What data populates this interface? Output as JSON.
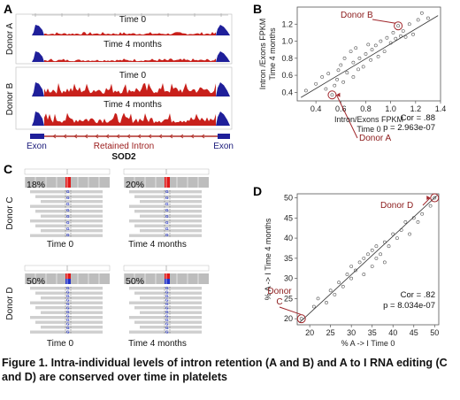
{
  "figure": {
    "panel_labels": [
      "A",
      "B",
      "C",
      "D"
    ],
    "caption": "Figure 1. Intra-individual levels of intron retention  (A and B) and A to I RNA editing (C and D) are conserved over time in platelets"
  },
  "panel_a": {
    "donor_labels": [
      "Donor A",
      "Donor B"
    ],
    "tracks": [
      {
        "title": "Time 0"
      },
      {
        "title": "Time 4 months"
      },
      {
        "title": "Time 0"
      },
      {
        "title": "Time 4 months"
      }
    ],
    "gene": {
      "exon_left": "Exon",
      "intron": "Retained Intron",
      "exon_right": "Exon",
      "name": "SOD2"
    },
    "colors": {
      "exon": "#1f1f9a",
      "intron": "#c8201b",
      "gene_line": "#b0302a"
    }
  },
  "panel_b": {
    "stats": {
      "cor": "Cor = .88",
      "p": "p = 2.963e-07"
    },
    "callouts": {
      "top": "Donor B",
      "bottom": "Donor A"
    }
  },
  "panel_c": {
    "donor_labels": [
      "Donor C",
      "Donor D"
    ],
    "tiles": [
      {
        "pct": "18%",
        "time": "Time 0"
      },
      {
        "pct": "20%",
        "time": "Time 4 months"
      },
      {
        "pct": "50%",
        "time": "Time 0"
      },
      {
        "pct": "50%",
        "time": "Time 4 months"
      }
    ]
  },
  "panel_d": {
    "stats": {
      "cor": "Cor = .82",
      "p": "p = 8.034e-07"
    },
    "callouts": {
      "top": "Donor D",
      "bottom_line1": "Donor",
      "bottom_line2": "C"
    }
  },
  "chart_data": [
    {
      "type": "scatter",
      "title": "",
      "xlabel": "Intron/Exons FPKM\nTime 0",
      "ylabel": "Intron /Exons FPKM\nTime 4 months",
      "xlim": [
        0.25,
        1.4
      ],
      "ylim": [
        0.3,
        1.4
      ],
      "x_ticks": [
        0.4,
        0.6,
        0.8,
        1.0,
        1.2,
        1.4
      ],
      "y_ticks": [
        0.4,
        0.6,
        0.8,
        1.0,
        1.2
      ],
      "x_tick_labels": [
        "0.4",
        "0.6",
        "0.8",
        "1.0",
        "1.2",
        "1.4"
      ],
      "y_tick_labels": [
        "0.4",
        "0.6",
        "0.8",
        "1.0",
        "1.2"
      ],
      "fit_line": [
        [
          0.28,
          0.34
        ],
        [
          1.38,
          1.3
        ]
      ],
      "points": [
        [
          0.32,
          0.42
        ],
        [
          0.4,
          0.5
        ],
        [
          0.45,
          0.58
        ],
        [
          0.48,
          0.44
        ],
        [
          0.5,
          0.62
        ],
        [
          0.53,
          0.37
        ],
        [
          0.55,
          0.48
        ],
        [
          0.57,
          0.55
        ],
        [
          0.58,
          0.66
        ],
        [
          0.6,
          0.72
        ],
        [
          0.62,
          0.52
        ],
        [
          0.63,
          0.8
        ],
        [
          0.65,
          0.63
        ],
        [
          0.68,
          0.88
        ],
        [
          0.7,
          0.58
        ],
        [
          0.7,
          0.75
        ],
        [
          0.72,
          0.92
        ],
        [
          0.74,
          0.67
        ],
        [
          0.75,
          0.8
        ],
        [
          0.78,
          0.7
        ],
        [
          0.8,
          0.85
        ],
        [
          0.82,
          0.96
        ],
        [
          0.84,
          0.78
        ],
        [
          0.85,
          0.9
        ],
        [
          0.88,
          0.95
        ],
        [
          0.9,
          0.82
        ],
        [
          0.92,
          1.0
        ],
        [
          0.95,
          0.88
        ],
        [
          0.97,
          1.04
        ],
        [
          1.0,
          0.98
        ],
        [
          1.02,
          1.1
        ],
        [
          1.04,
          1.03
        ],
        [
          1.06,
          1.18
        ],
        [
          1.08,
          1.06
        ],
        [
          1.1,
          1.12
        ],
        [
          1.12,
          1.05
        ],
        [
          1.15,
          1.2
        ],
        [
          1.18,
          1.08
        ],
        [
          1.22,
          1.25
        ],
        [
          1.25,
          1.33
        ],
        [
          1.3,
          1.27
        ]
      ],
      "highlighted": [
        {
          "label": "Donor B",
          "x": 1.06,
          "y": 1.18
        },
        {
          "label": "Donor A",
          "x": 0.53,
          "y": 0.37
        }
      ],
      "grid": false
    },
    {
      "type": "scatter",
      "title": "",
      "xlabel": "% A -> I Time 0",
      "ylabel": "% A -> I Time 4 months",
      "xlim": [
        17,
        51
      ],
      "ylim": [
        18.5,
        51
      ],
      "x_ticks": [
        20,
        25,
        30,
        35,
        40,
        45,
        50
      ],
      "y_ticks": [
        20,
        25,
        30,
        35,
        40,
        45,
        50
      ],
      "x_tick_labels": [
        "20",
        "25",
        "30",
        "35",
        "40",
        "45",
        "50"
      ],
      "y_tick_labels": [
        "20",
        "25",
        "30",
        "35",
        "40",
        "45",
        "50"
      ],
      "fit_line": [
        [
          17.5,
          19.0
        ],
        [
          50.5,
          50.5
        ]
      ],
      "points": [
        [
          18,
          20
        ],
        [
          21,
          23
        ],
        [
          22,
          25
        ],
        [
          24,
          24
        ],
        [
          25,
          27
        ],
        [
          26,
          26
        ],
        [
          27,
          29
        ],
        [
          28,
          28
        ],
        [
          29,
          31
        ],
        [
          30,
          30
        ],
        [
          30,
          33
        ],
        [
          31,
          32
        ],
        [
          32,
          34
        ],
        [
          33,
          31
        ],
        [
          33,
          35
        ],
        [
          34,
          36
        ],
        [
          35,
          33
        ],
        [
          35,
          37
        ],
        [
          36,
          35
        ],
        [
          36,
          38
        ],
        [
          37,
          36
        ],
        [
          38,
          39
        ],
        [
          38,
          34
        ],
        [
          39,
          38
        ],
        [
          40,
          41
        ],
        [
          41,
          40
        ],
        [
          42,
          42
        ],
        [
          43,
          44
        ],
        [
          44,
          41
        ],
        [
          45,
          45
        ],
        [
          46,
          44
        ],
        [
          47,
          46
        ],
        [
          49,
          48
        ],
        [
          50,
          50
        ]
      ],
      "highlighted": [
        {
          "label": "Donor D",
          "x": 50,
          "y": 50
        },
        {
          "label": "Donor C",
          "x": 18,
          "y": 20
        }
      ],
      "grid": false
    }
  ]
}
